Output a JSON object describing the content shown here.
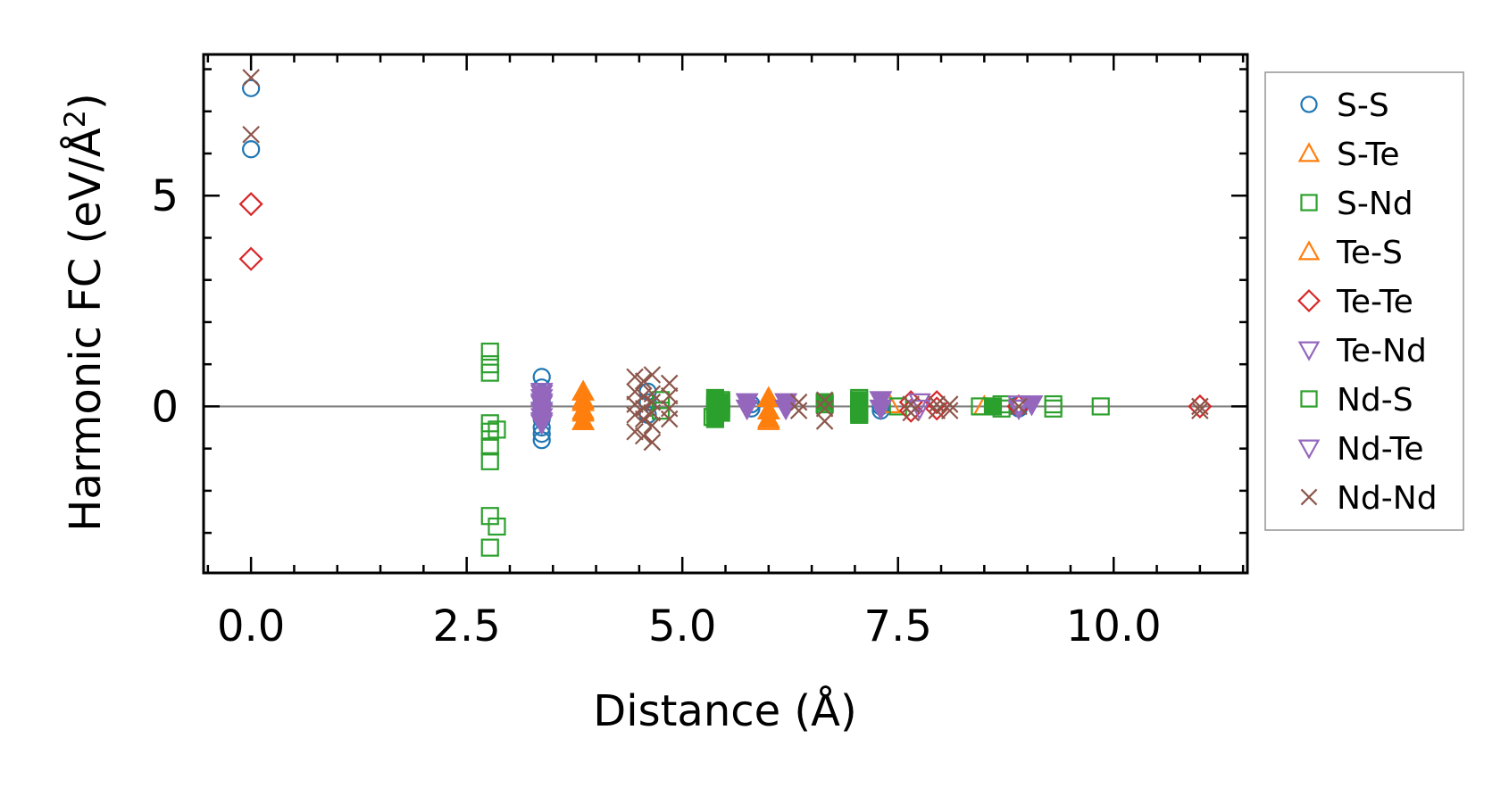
{
  "chart_data": {
    "type": "scatter",
    "title": "",
    "xlabel": "Distance (Å)",
    "ylabel_main": "Harmonic FC (eV/Å",
    "ylabel_sup": "2",
    "ylabel_close": ")",
    "xlim": [
      -0.55,
      11.55
    ],
    "ylim": [
      -3.95,
      8.35
    ],
    "xticks": [
      {
        "value": 0.0,
        "label": "0.0"
      },
      {
        "value": 2.5,
        "label": "2.5"
      },
      {
        "value": 5.0,
        "label": "5.0"
      },
      {
        "value": 7.5,
        "label": "7.5"
      },
      {
        "value": 10.0,
        "label": "10.0"
      }
    ],
    "yticks": [
      {
        "value": 0,
        "label": "0"
      },
      {
        "value": 5,
        "label": "5"
      }
    ],
    "legend_position": "outside-right",
    "zero_line": true,
    "series": [
      {
        "name": "S-S",
        "marker": "circle",
        "filled": false,
        "color": "#1f77b4",
        "points": [
          [
            0.0,
            7.55
          ],
          [
            0.0,
            6.1
          ],
          [
            3.37,
            0.7
          ],
          [
            3.37,
            0.45
          ],
          [
            3.37,
            0.3
          ],
          [
            3.37,
            0.15
          ],
          [
            3.37,
            -0.1
          ],
          [
            3.37,
            -0.3
          ],
          [
            3.37,
            -0.5
          ],
          [
            3.37,
            -0.65
          ],
          [
            3.37,
            -0.8
          ],
          [
            4.6,
            0.35
          ],
          [
            4.6,
            0.1
          ],
          [
            4.6,
            -0.2
          ],
          [
            5.8,
            0.05
          ],
          [
            5.8,
            -0.05
          ],
          [
            7.3,
            0.0
          ],
          [
            7.3,
            -0.1
          ],
          [
            8.9,
            0.05
          ],
          [
            8.9,
            -0.05
          ]
        ]
      },
      {
        "name": "S-Te",
        "marker": "triangle-up",
        "filled": false,
        "color": "#ff7f0e",
        "points": [
          [
            3.85,
            0.35
          ],
          [
            3.85,
            0.15
          ],
          [
            3.85,
            -0.1
          ],
          [
            3.85,
            -0.35
          ],
          [
            6.0,
            0.2
          ],
          [
            6.0,
            -0.1
          ],
          [
            6.0,
            -0.35
          ],
          [
            7.4,
            0.05
          ],
          [
            8.5,
            0.0
          ]
        ]
      },
      {
        "name": "S-Nd",
        "marker": "square",
        "filled": false,
        "color": "#2ca02c",
        "points": [
          [
            2.77,
            1.3
          ],
          [
            2.77,
            1.0
          ],
          [
            2.77,
            0.8
          ],
          [
            2.77,
            -0.4
          ],
          [
            2.77,
            -0.6
          ],
          [
            2.77,
            -0.95
          ],
          [
            2.77,
            -1.3
          ],
          [
            2.77,
            -2.6
          ],
          [
            2.77,
            -3.35
          ],
          [
            2.85,
            -2.85
          ],
          [
            2.85,
            -0.55
          ],
          [
            4.75,
            0.15
          ],
          [
            4.75,
            -0.1
          ],
          [
            5.45,
            0.15
          ],
          [
            5.45,
            -0.05
          ],
          [
            5.35,
            -0.25
          ],
          [
            6.65,
            0.05
          ],
          [
            7.05,
            0.2
          ],
          [
            7.05,
            -0.15
          ],
          [
            7.5,
            0.0
          ],
          [
            8.45,
            0.0
          ],
          [
            8.7,
            0.05
          ],
          [
            8.7,
            -0.05
          ],
          [
            9.3,
            0.05
          ],
          [
            9.3,
            -0.05
          ],
          [
            9.85,
            0.0
          ]
        ]
      },
      {
        "name": "Te-S",
        "marker": "triangle-up",
        "filled": true,
        "color": "#ff7f0e",
        "points": [
          [
            3.85,
            0.35
          ],
          [
            3.85,
            0.1
          ],
          [
            3.85,
            -0.15
          ],
          [
            3.85,
            -0.35
          ],
          [
            6.0,
            0.2
          ],
          [
            6.0,
            -0.1
          ],
          [
            6.0,
            -0.3
          ]
        ]
      },
      {
        "name": "Te-Te",
        "marker": "diamond",
        "filled": false,
        "color": "#d62728",
        "points": [
          [
            0.0,
            4.8
          ],
          [
            0.0,
            3.5
          ],
          [
            7.65,
            0.1
          ],
          [
            7.65,
            -0.1
          ],
          [
            7.95,
            0.1
          ],
          [
            7.95,
            -0.05
          ],
          [
            8.9,
            0.0
          ],
          [
            11.0,
            0.0
          ]
        ]
      },
      {
        "name": "Te-Nd",
        "marker": "triangle-down",
        "filled": false,
        "color": "#9467bd",
        "points": [
          [
            3.37,
            0.35
          ],
          [
            3.37,
            0.2
          ],
          [
            3.37,
            0.05
          ],
          [
            3.37,
            -0.1
          ],
          [
            3.37,
            -0.25
          ],
          [
            3.37,
            -0.4
          ],
          [
            5.75,
            0.1
          ],
          [
            5.75,
            -0.05
          ],
          [
            6.2,
            0.1
          ],
          [
            6.2,
            -0.05
          ],
          [
            7.3,
            0.15
          ],
          [
            7.3,
            -0.05
          ],
          [
            7.75,
            0.1
          ],
          [
            7.75,
            -0.05
          ],
          [
            8.9,
            0.05
          ],
          [
            8.9,
            -0.05
          ],
          [
            9.05,
            0.05
          ]
        ]
      },
      {
        "name": "Nd-S",
        "marker": "square",
        "filled": true,
        "color": "#2ca02c",
        "points": [
          [
            5.38,
            0.2
          ],
          [
            5.38,
            0.05
          ],
          [
            5.38,
            -0.1
          ],
          [
            5.38,
            -0.3
          ],
          [
            5.45,
            0.1
          ],
          [
            5.45,
            -0.15
          ],
          [
            7.05,
            0.15
          ],
          [
            7.05,
            -0.05
          ],
          [
            7.05,
            -0.2
          ],
          [
            6.65,
            0.1
          ],
          [
            8.6,
            0.0
          ]
        ]
      },
      {
        "name": "Nd-Te",
        "marker": "triangle-down",
        "filled": true,
        "color": "#9467bd",
        "points": [
          [
            3.37,
            0.3
          ],
          [
            3.37,
            0.1
          ],
          [
            3.37,
            -0.15
          ],
          [
            3.37,
            -0.35
          ],
          [
            5.75,
            0.1
          ],
          [
            5.75,
            -0.05
          ],
          [
            6.2,
            0.1
          ],
          [
            6.2,
            -0.05
          ],
          [
            7.3,
            0.15
          ],
          [
            7.3,
            -0.05
          ],
          [
            9.05,
            0.05
          ]
        ]
      },
      {
        "name": "Nd-Nd",
        "marker": "cross",
        "filled": false,
        "color": "#8c564b",
        "points": [
          [
            0.0,
            7.8
          ],
          [
            0.0,
            6.45
          ],
          [
            4.45,
            0.7
          ],
          [
            4.55,
            0.6
          ],
          [
            4.65,
            0.75
          ],
          [
            4.45,
            0.35
          ],
          [
            4.55,
            0.25
          ],
          [
            4.65,
            0.3
          ],
          [
            4.45,
            0.05
          ],
          [
            4.55,
            -0.05
          ],
          [
            4.65,
            0.1
          ],
          [
            4.45,
            -0.2
          ],
          [
            4.55,
            -0.3
          ],
          [
            4.65,
            -0.15
          ],
          [
            4.45,
            -0.6
          ],
          [
            4.55,
            -0.7
          ],
          [
            4.65,
            -0.85
          ],
          [
            4.65,
            -0.45
          ],
          [
            4.85,
            0.55
          ],
          [
            4.85,
            0.25
          ],
          [
            4.85,
            -0.05
          ],
          [
            4.85,
            -0.3
          ],
          [
            6.35,
            0.1
          ],
          [
            6.35,
            -0.1
          ],
          [
            6.65,
            0.15
          ],
          [
            6.65,
            -0.05
          ],
          [
            6.65,
            -0.35
          ],
          [
            7.65,
            0.05
          ],
          [
            7.65,
            -0.15
          ],
          [
            7.95,
            0.05
          ],
          [
            7.95,
            -0.1
          ],
          [
            8.1,
            0.05
          ],
          [
            8.1,
            -0.1
          ],
          [
            8.9,
            0.0
          ],
          [
            11.0,
            0.0
          ],
          [
            11.0,
            -0.1
          ]
        ]
      }
    ]
  }
}
